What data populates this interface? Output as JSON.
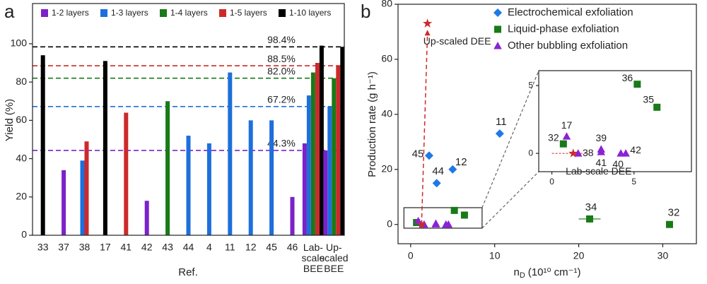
{
  "chart_data": [
    {
      "type": "bar",
      "panel_label": "a",
      "x_label": "Ref.",
      "y_label": "Yield (%)",
      "categories": [
        "33",
        "37",
        "38",
        "17",
        "41",
        "42",
        "43",
        "44",
        "4",
        "11",
        "12",
        "45",
        "46",
        "Lab-scale BEE",
        "Up-scaled BEE"
      ],
      "series": [
        {
          "name": "1-2 layers",
          "color": "#7b22c8",
          "values": [
            null,
            34,
            null,
            null,
            null,
            18,
            null,
            null,
            null,
            null,
            null,
            null,
            20,
            48,
            44.3
          ]
        },
        {
          "name": "1-3 layers",
          "color": "#1e6fdc",
          "values": [
            null,
            null,
            39,
            null,
            null,
            null,
            null,
            52,
            48,
            85,
            60,
            60,
            null,
            73,
            67.2
          ]
        },
        {
          "name": "1-4 layers",
          "color": "#187a18",
          "values": [
            null,
            null,
            null,
            null,
            null,
            null,
            70,
            null,
            null,
            null,
            null,
            null,
            null,
            85,
            82.0
          ]
        },
        {
          "name": "1-5 layers",
          "color": "#cc2a2a",
          "values": [
            null,
            null,
            49,
            null,
            64,
            null,
            null,
            null,
            null,
            null,
            null,
            null,
            null,
            90,
            88.5
          ]
        },
        {
          "name": "1-10 layers",
          "color": "#000000",
          "values": [
            94,
            null,
            null,
            91,
            null,
            null,
            null,
            null,
            null,
            null,
            null,
            null,
            null,
            99,
            98.4
          ]
        }
      ],
      "reference_lines": [
        {
          "value": 98.4,
          "label": "98.4%",
          "color": "#000000"
        },
        {
          "value": 88.5,
          "label": "88.5%",
          "color": "#cc2a2a"
        },
        {
          "value": 82.0,
          "label": "82.0%",
          "color": "#187a18"
        },
        {
          "value": 67.2,
          "label": "67.2%",
          "color": "#1e6fdc"
        },
        {
          "value": 44.3,
          "label": "44.3%",
          "color": "#7b22c8"
        }
      ],
      "ylim": [
        0,
        121
      ],
      "yticks": [
        0,
        20,
        40,
        60,
        80,
        100
      ]
    },
    {
      "type": "scatter",
      "panel_label": "b",
      "x_label": {
        "symbol": "n",
        "subscript": "D",
        "unit": "(10¹⁰ cm⁻¹)"
      },
      "y_label": "Production rate (g h⁻¹)",
      "xlim": [
        -1.5,
        34
      ],
      "xticks": [
        0,
        10,
        20,
        30
      ],
      "ylim": [
        -7,
        80
      ],
      "yticks": [
        0,
        20,
        40,
        60,
        80
      ],
      "series": [
        {
          "name": "Electrochemical exfoliation",
          "color": "#1f78e6",
          "marker": "diamond",
          "x": [
            2.2,
            3.1,
            5,
            10.6
          ],
          "values": [
            25,
            15,
            20,
            33
          ],
          "labels": [
            "45",
            "44",
            "12",
            "11"
          ]
        },
        {
          "name": "Liquid-phase exfoliation",
          "color": "#187a18",
          "marker": "square",
          "x": [
            0.7,
            5.2,
            6.4,
            21.3,
            30.8
          ],
          "values": [
            0.7,
            5.1,
            3.4,
            2,
            0
          ],
          "labels": [
            "32",
            "36",
            "35",
            "34",
            "32"
          ],
          "x_errors": [
            null,
            null,
            null,
            1.3,
            null
          ]
        },
        {
          "name": "Other bubbling exfoliation",
          "color": "#8a22d6",
          "marker": "triangle",
          "x": [
            0.9,
            1.6,
            3.0,
            3.0,
            4.2,
            4.5
          ],
          "values": [
            1.25,
            0,
            0.3,
            0.1,
            0,
            0
          ],
          "labels": [
            "17",
            "38",
            "39",
            "41",
            "40",
            "42"
          ]
        }
      ],
      "highlights": {
        "color": "#cc2a2a",
        "marker": "star",
        "x": [
          1.3,
          2
        ],
        "values": [
          0,
          73
        ],
        "labels": [
          "Lab-scale DEE",
          "Up-scaled DEE"
        ]
      },
      "inset": {
        "xlim": [
          -0.8,
          8.5
        ],
        "ylim": [
          -1.35,
          6.1
        ],
        "xticks": [
          0,
          5
        ],
        "yticks": [
          0,
          5
        ]
      },
      "legend": "upper right"
    }
  ]
}
